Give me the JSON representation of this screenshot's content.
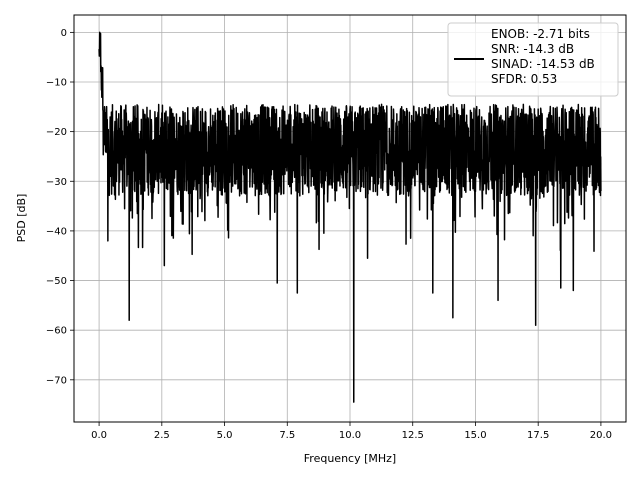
{
  "chart_data": {
    "type": "line",
    "title": "",
    "xlabel": "Frequency [MHz]",
    "ylabel": "PSD [dB]",
    "xlim": [
      -1.0,
      21.0
    ],
    "ylim": [
      -78.5,
      3.5
    ],
    "xticks": [
      0.0,
      2.5,
      5.0,
      7.5,
      10.0,
      12.5,
      15.0,
      17.5,
      20.0
    ],
    "xtick_labels": [
      "0.0",
      "2.5",
      "5.0",
      "7.5",
      "10.0",
      "12.5",
      "15.0",
      "17.5",
      "20.0"
    ],
    "yticks": [
      0,
      -10,
      -20,
      -30,
      -40,
      -50,
      -60,
      -70
    ],
    "ytick_labels": [
      "0",
      "−10",
      "−20",
      "−30",
      "−40",
      "−50",
      "−60",
      "−70"
    ],
    "grid": true,
    "legend_position": "top-right",
    "legend_lines": [
      "ENOB: -2.71 bits",
      "SNR: -14.3 dB",
      "SINAD: -14.53 dB",
      "SFDR: 0.53"
    ],
    "series": [
      {
        "color": "#000000",
        "x_range": [
          0.0,
          20.0
        ],
        "x": [
          0.0,
          0.05,
          0.1,
          0.2,
          0.3,
          0.5,
          1.0,
          1.2,
          2.0,
          2.5,
          3.0,
          5.0,
          7.5,
          10.0,
          10.15,
          12.5,
          15.0,
          17.4,
          20.0
        ],
        "y": [
          -6.0,
          0.0,
          -4.0,
          -8.0,
          -18.0,
          -28.0,
          -28.0,
          -58.0,
          -28.0,
          -28.0,
          -28.0,
          -29.0,
          -28.0,
          -28.0,
          -74.5,
          -28.0,
          -29.0,
          -59.0,
          -29.0
        ],
        "envelope_upper": -14.5,
        "envelope_lower": -33.0,
        "deep_notches": [
          {
            "x": 0.35,
            "y": -42.0
          },
          {
            "x": 1.2,
            "y": -58.0
          },
          {
            "x": 2.6,
            "y": -47.0
          },
          {
            "x": 7.1,
            "y": -50.5
          },
          {
            "x": 7.9,
            "y": -52.5
          },
          {
            "x": 10.15,
            "y": -74.5
          },
          {
            "x": 10.7,
            "y": -45.5
          },
          {
            "x": 13.3,
            "y": -52.5
          },
          {
            "x": 14.1,
            "y": -57.5
          },
          {
            "x": 15.9,
            "y": -54.0
          },
          {
            "x": 17.4,
            "y": -59.0
          },
          {
            "x": 18.4,
            "y": -51.5
          },
          {
            "x": 18.9,
            "y": -52.0
          }
        ]
      }
    ]
  }
}
